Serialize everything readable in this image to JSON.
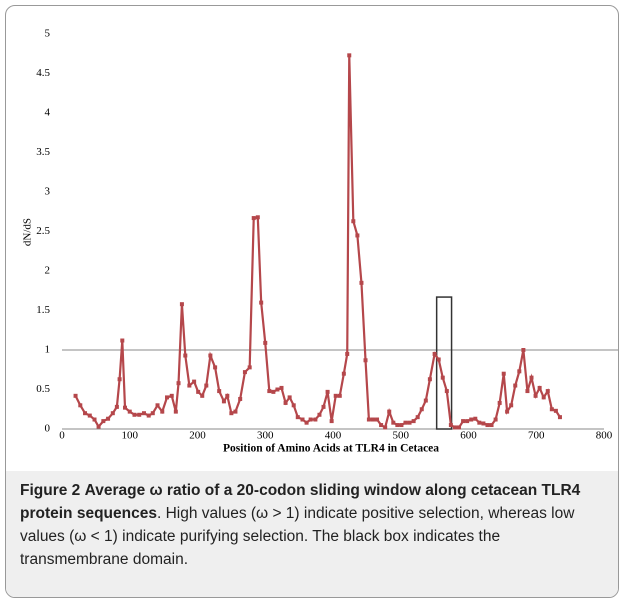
{
  "chart_data": {
    "type": "line",
    "xlabel": "Position of Amino Acids at TLR4 in Cetacea",
    "ylabel": "dN/dS",
    "x": [
      20,
      27,
      34,
      41,
      48,
      54,
      61,
      68,
      75,
      81,
      85,
      89,
      93,
      100,
      107,
      114,
      121,
      128,
      134,
      141,
      148,
      155,
      162,
      168,
      172,
      177,
      182,
      188,
      195,
      201,
      207,
      213,
      219,
      226,
      232,
      239,
      244,
      250,
      256,
      263,
      270,
      277,
      283,
      289,
      294,
      300,
      306,
      312,
      318,
      324,
      330,
      336,
      342,
      348,
      355,
      361,
      367,
      374,
      380,
      386,
      392,
      398,
      404,
      410,
      416,
      421,
      424,
      430,
      436,
      442,
      448,
      453,
      459,
      465,
      471,
      477,
      483,
      489,
      495,
      501,
      507,
      513,
      519,
      525,
      531,
      537,
      543,
      550,
      556,
      562,
      568,
      574,
      580,
      586,
      592,
      598,
      604,
      610,
      616,
      622,
      628,
      634,
      640,
      646,
      652,
      657,
      663,
      669,
      675,
      681,
      687,
      693,
      699,
      705,
      711,
      717,
      723,
      729,
      735
    ],
    "series": [
      {
        "color": "#b5474b",
        "values": [
          0.42,
          0.3,
          0.2,
          0.17,
          0.12,
          0.03,
          0.1,
          0.13,
          0.2,
          0.28,
          0.63,
          1.12,
          0.27,
          0.22,
          0.18,
          0.18,
          0.2,
          0.17,
          0.2,
          0.3,
          0.22,
          0.4,
          0.42,
          0.22,
          0.58,
          1.58,
          0.93,
          0.55,
          0.6,
          0.47,
          0.42,
          0.55,
          0.93,
          0.78,
          0.48,
          0.35,
          0.42,
          0.2,
          0.22,
          0.38,
          0.72,
          0.78,
          2.67,
          2.68,
          1.6,
          1.09,
          0.48,
          0.47,
          0.5,
          0.52,
          0.33,
          0.4,
          0.3,
          0.15,
          0.12,
          0.08,
          0.12,
          0.12,
          0.18,
          0.28,
          0.47,
          0.1,
          0.42,
          0.42,
          0.7,
          0.95,
          4.73,
          2.63,
          2.45,
          1.85,
          0.87,
          0.12,
          0.12,
          0.12,
          0.05,
          0.02,
          0.22,
          0.08,
          0.05,
          0.05,
          0.08,
          0.08,
          0.1,
          0.15,
          0.25,
          0.36,
          0.63,
          0.95,
          0.88,
          0.65,
          0.48,
          0.05,
          0.02,
          0.02,
          0.1,
          0.1,
          0.12,
          0.13,
          0.08,
          0.07,
          0.05,
          0.05,
          0.12,
          0.33,
          0.7,
          0.22,
          0.3,
          0.55,
          0.73,
          1.0,
          0.48,
          0.65,
          0.42,
          0.52,
          0.4,
          0.48,
          0.25,
          0.23,
          0.15
        ]
      }
    ],
    "xlim": [
      0,
      800
    ],
    "xticks": [
      0,
      100,
      200,
      300,
      400,
      500,
      600,
      700,
      800
    ],
    "ylim": [
      0,
      5
    ],
    "yticks": [
      0,
      0.5,
      1,
      1.5,
      2,
      2.5,
      3,
      3.5,
      4,
      4.5,
      5
    ],
    "reference_line": 1,
    "box": {
      "x": [
        553,
        575
      ],
      "y": [
        0,
        1.67
      ]
    }
  },
  "caption": {
    "label": "Figure 2",
    "title": "Average ω ratio of a 20-codon sliding window along cetacean TLR4 protein sequences",
    "text": ". High values (ω > 1) indicate positive selection, whereas low values (ω < 1) indicate purifying selection. The black box indicates the transmembrane domain."
  }
}
